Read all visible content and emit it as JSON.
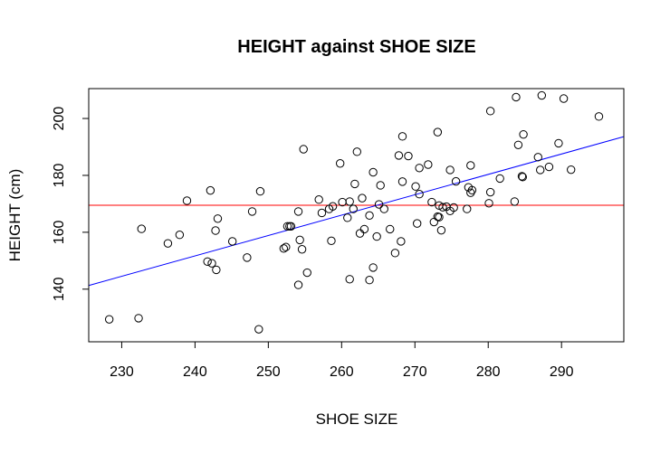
{
  "chart_data": {
    "type": "scatter",
    "title": "HEIGHT against SHOE SIZE",
    "xlabel": "SHOE SIZE",
    "ylabel": "HEIGHT (cm)",
    "xlim": [
      225.5,
      298.5
    ],
    "ylim": [
      121.5,
      210.5
    ],
    "xticks": [
      230,
      240,
      250,
      260,
      270,
      280,
      290
    ],
    "yticks": [
      140,
      160,
      180,
      200
    ],
    "mean_line": {
      "y": 169.5,
      "color": "#ff0000"
    },
    "regression_line": {
      "x0": 225.5,
      "y0": 141.3,
      "x1": 298.5,
      "y1": 193.6,
      "color": "#0000ff"
    },
    "marker_color": "#000000",
    "points": [
      {
        "x": 228.3,
        "y": 129.4
      },
      {
        "x": 232.3,
        "y": 129.8
      },
      {
        "x": 232.7,
        "y": 161.2
      },
      {
        "x": 236.3,
        "y": 156.1
      },
      {
        "x": 237.9,
        "y": 159.1
      },
      {
        "x": 238.9,
        "y": 171.1
      },
      {
        "x": 241.7,
        "y": 149.7
      },
      {
        "x": 242.1,
        "y": 174.7
      },
      {
        "x": 242.3,
        "y": 149.1
      },
      {
        "x": 242.8,
        "y": 160.6
      },
      {
        "x": 242.9,
        "y": 146.8
      },
      {
        "x": 243.1,
        "y": 164.8
      },
      {
        "x": 245.1,
        "y": 156.8
      },
      {
        "x": 247.1,
        "y": 151.1
      },
      {
        "x": 247.8,
        "y": 167.3
      },
      {
        "x": 248.7,
        "y": 125.9
      },
      {
        "x": 248.9,
        "y": 174.4
      },
      {
        "x": 252.1,
        "y": 154.3
      },
      {
        "x": 252.4,
        "y": 154.8
      },
      {
        "x": 252.6,
        "y": 162.1
      },
      {
        "x": 252.9,
        "y": 162.1
      },
      {
        "x": 253.1,
        "y": 162.1
      },
      {
        "x": 254.1,
        "y": 141.5
      },
      {
        "x": 254.1,
        "y": 167.3
      },
      {
        "x": 254.3,
        "y": 157.3
      },
      {
        "x": 254.6,
        "y": 154.0
      },
      {
        "x": 254.8,
        "y": 189.2
      },
      {
        "x": 255.3,
        "y": 145.8
      },
      {
        "x": 256.9,
        "y": 171.5
      },
      {
        "x": 257.3,
        "y": 166.8
      },
      {
        "x": 258.3,
        "y": 168.2
      },
      {
        "x": 258.6,
        "y": 157.0
      },
      {
        "x": 258.8,
        "y": 169.1
      },
      {
        "x": 259.8,
        "y": 184.2
      },
      {
        "x": 260.1,
        "y": 170.6
      },
      {
        "x": 260.8,
        "y": 165.1
      },
      {
        "x": 261.1,
        "y": 170.8
      },
      {
        "x": 261.1,
        "y": 143.5
      },
      {
        "x": 261.6,
        "y": 168.2
      },
      {
        "x": 261.8,
        "y": 177.0
      },
      {
        "x": 262.1,
        "y": 188.3
      },
      {
        "x": 262.5,
        "y": 159.6
      },
      {
        "x": 262.8,
        "y": 172.0
      },
      {
        "x": 263.1,
        "y": 161.1
      },
      {
        "x": 263.8,
        "y": 165.9
      },
      {
        "x": 263.8,
        "y": 143.2
      },
      {
        "x": 264.3,
        "y": 181.1
      },
      {
        "x": 264.3,
        "y": 147.6
      },
      {
        "x": 264.8,
        "y": 158.5
      },
      {
        "x": 265.1,
        "y": 169.8
      },
      {
        "x": 265.3,
        "y": 176.5
      },
      {
        "x": 265.8,
        "y": 168.2
      },
      {
        "x": 266.6,
        "y": 161.1
      },
      {
        "x": 267.3,
        "y": 152.7
      },
      {
        "x": 267.8,
        "y": 187.0
      },
      {
        "x": 268.1,
        "y": 156.8
      },
      {
        "x": 268.3,
        "y": 193.7
      },
      {
        "x": 268.3,
        "y": 177.8
      },
      {
        "x": 269.1,
        "y": 186.8
      },
      {
        "x": 270.1,
        "y": 176.1
      },
      {
        "x": 270.3,
        "y": 163.1
      },
      {
        "x": 270.6,
        "y": 173.4
      },
      {
        "x": 270.6,
        "y": 182.6
      },
      {
        "x": 271.8,
        "y": 183.8
      },
      {
        "x": 272.3,
        "y": 170.6
      },
      {
        "x": 272.6,
        "y": 163.6
      },
      {
        "x": 273.1,
        "y": 195.2
      },
      {
        "x": 273.1,
        "y": 165.5
      },
      {
        "x": 273.3,
        "y": 165.3
      },
      {
        "x": 273.3,
        "y": 169.4
      },
      {
        "x": 273.6,
        "y": 160.7
      },
      {
        "x": 273.8,
        "y": 168.8
      },
      {
        "x": 274.3,
        "y": 169.0
      },
      {
        "x": 274.8,
        "y": 167.5
      },
      {
        "x": 274.8,
        "y": 181.9
      },
      {
        "x": 275.3,
        "y": 168.7
      },
      {
        "x": 275.6,
        "y": 177.9
      },
      {
        "x": 277.1,
        "y": 168.2
      },
      {
        "x": 277.3,
        "y": 175.8
      },
      {
        "x": 277.6,
        "y": 173.9
      },
      {
        "x": 277.6,
        "y": 183.5
      },
      {
        "x": 277.8,
        "y": 174.8
      },
      {
        "x": 280.1,
        "y": 170.2
      },
      {
        "x": 280.3,
        "y": 174.1
      },
      {
        "x": 280.3,
        "y": 202.6
      },
      {
        "x": 281.6,
        "y": 178.9
      },
      {
        "x": 283.6,
        "y": 170.8
      },
      {
        "x": 283.8,
        "y": 207.5
      },
      {
        "x": 284.1,
        "y": 190.7
      },
      {
        "x": 284.6,
        "y": 179.7
      },
      {
        "x": 284.8,
        "y": 194.4
      },
      {
        "x": 286.8,
        "y": 186.4
      },
      {
        "x": 287.1,
        "y": 181.9
      },
      {
        "x": 287.3,
        "y": 208.1
      },
      {
        "x": 288.3,
        "y": 183.0
      },
      {
        "x": 289.6,
        "y": 191.3
      },
      {
        "x": 290.3,
        "y": 207.0
      },
      {
        "x": 291.3,
        "y": 182.0
      },
      {
        "x": 295.1,
        "y": 200.7
      },
      {
        "x": 284.7,
        "y": 179.4
      }
    ]
  }
}
